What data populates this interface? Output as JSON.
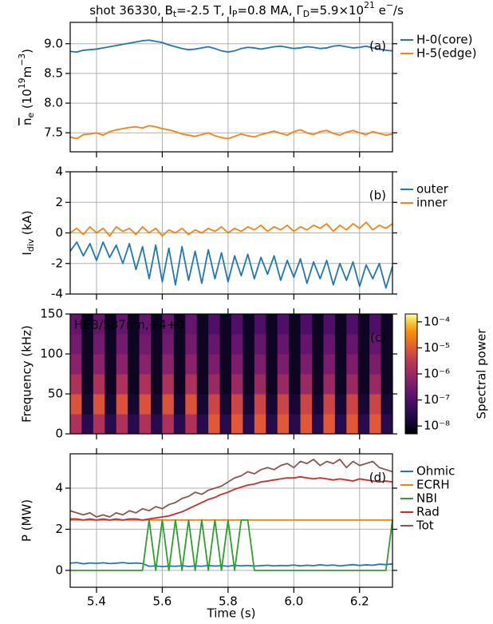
{
  "chart_data": [
    {
      "type": "line",
      "title": [
        {
          "text": "shot 36330, B"
        },
        {
          "text": "t",
          "shift": "sub"
        },
        {
          "text": "=-2.5 T, I"
        },
        {
          "text": "P",
          "shift": "sub"
        },
        {
          "text": "=0.8 MA, Γ"
        },
        {
          "text": "D",
          "shift": "sub"
        },
        {
          "text": "=5.9×10"
        },
        {
          "text": "21",
          "shift": "super"
        },
        {
          "text": " e"
        },
        {
          "text": "−",
          "shift": "super"
        },
        {
          "text": "/s"
        }
      ],
      "ylabel": [
        {
          "text": "n",
          "shift": "overline"
        },
        {
          "text": "e",
          "shift": "sub"
        },
        {
          "text": " (10"
        },
        {
          "text": "19",
          "shift": "super"
        },
        {
          "text": "m"
        },
        {
          "text": "−3",
          "shift": "super"
        },
        {
          "text": ")"
        }
      ],
      "panel_label": "(a)",
      "grid": true,
      "legend": "outside right",
      "xlim": [
        5.32,
        6.3
      ],
      "xticks": [
        5.4,
        5.6,
        5.8,
        {
          "value": 6,
          "label": "6.0"
        },
        6.2
      ],
      "ylim": [
        7.18,
        9.36
      ],
      "yticks": [
        7.5,
        {
          "value": 8,
          "label": "8.0"
        },
        8.5,
        {
          "value": 9,
          "label": "9.0"
        }
      ],
      "x": [
        5.32,
        5.34,
        5.36,
        5.38,
        5.4,
        5.42,
        5.44,
        5.46,
        5.48,
        5.5,
        5.52,
        5.54,
        5.56,
        5.58,
        5.6,
        5.62,
        5.64,
        5.66,
        5.68,
        5.7,
        5.72,
        5.74,
        5.76,
        5.78,
        5.8,
        5.82,
        5.84,
        5.86,
        5.88,
        5.9,
        5.92,
        5.94,
        5.96,
        5.98,
        6.0,
        6.02,
        6.04,
        6.06,
        6.08,
        6.1,
        6.12,
        6.14,
        6.16,
        6.18,
        6.2,
        6.22,
        6.24,
        6.26,
        6.28,
        6.3
      ],
      "series": [
        {
          "name": "H-0(core)",
          "color": "#1f77b4",
          "values": [
            8.87,
            8.86,
            8.89,
            8.9,
            8.91,
            8.93,
            8.95,
            8.97,
            8.99,
            9.01,
            9.03,
            9.05,
            9.06,
            9.04,
            9.02,
            8.98,
            8.95,
            8.92,
            8.9,
            8.91,
            8.93,
            8.95,
            8.92,
            8.88,
            8.86,
            8.88,
            8.92,
            8.94,
            8.93,
            8.91,
            8.93,
            8.95,
            8.96,
            8.94,
            8.92,
            8.93,
            8.95,
            8.94,
            8.92,
            8.93,
            8.96,
            8.97,
            8.95,
            8.93,
            8.94,
            8.96,
            8.93,
            8.91,
            8.89,
            8.88
          ]
        },
        {
          "name": "H-5(edge)",
          "color": "#ff7f0e",
          "values": [
            7.43,
            7.4,
            7.47,
            7.48,
            7.5,
            7.46,
            7.52,
            7.55,
            7.57,
            7.59,
            7.6,
            7.58,
            7.62,
            7.6,
            7.57,
            7.55,
            7.52,
            7.48,
            7.46,
            7.44,
            7.47,
            7.5,
            7.45,
            7.42,
            7.4,
            7.44,
            7.48,
            7.45,
            7.43,
            7.47,
            7.5,
            7.53,
            7.49,
            7.46,
            7.52,
            7.55,
            7.5,
            7.47,
            7.52,
            7.54,
            7.49,
            7.46,
            7.51,
            7.54,
            7.5,
            7.47,
            7.52,
            7.49,
            7.46,
            7.48
          ]
        }
      ]
    },
    {
      "type": "line",
      "ylabel": [
        {
          "text": "I"
        },
        {
          "text": "div",
          "shift": "sub"
        },
        {
          "text": " (kA)"
        }
      ],
      "panel_label": "(b)",
      "grid": true,
      "legend": "outside right",
      "xlim": [
        5.32,
        6.3
      ],
      "xticks": [
        5.4,
        5.6,
        5.8,
        {
          "value": 6,
          "label": "6.0"
        },
        6.2
      ],
      "ylim": [
        -4,
        4
      ],
      "yticks": [
        -4,
        -2,
        0,
        2,
        4
      ],
      "x": [
        5.32,
        5.34,
        5.36,
        5.38,
        5.4,
        5.42,
        5.44,
        5.46,
        5.48,
        5.5,
        5.52,
        5.54,
        5.56,
        5.58,
        5.6,
        5.62,
        5.64,
        5.66,
        5.68,
        5.7,
        5.72,
        5.74,
        5.76,
        5.78,
        5.8,
        5.82,
        5.84,
        5.86,
        5.88,
        5.9,
        5.92,
        5.94,
        5.96,
        5.98,
        6.0,
        6.02,
        6.04,
        6.06,
        6.08,
        6.1,
        6.12,
        6.14,
        6.16,
        6.18,
        6.2,
        6.22,
        6.24,
        6.26,
        6.28,
        6.3
      ],
      "series": [
        {
          "name": "outer",
          "color": "#1f77b4",
          "values": [
            -1.2,
            -0.6,
            -1.5,
            -0.7,
            -1.8,
            -0.6,
            -1.6,
            -0.8,
            -2.0,
            -0.7,
            -2.4,
            -0.9,
            -3.0,
            -0.8,
            -3.2,
            -1.0,
            -3.4,
            -0.9,
            -3.1,
            -1.2,
            -3.3,
            -1.1,
            -3.0,
            -1.3,
            -3.2,
            -1.5,
            -2.8,
            -1.4,
            -3.0,
            -1.6,
            -2.7,
            -1.5,
            -3.1,
            -1.8,
            -2.9,
            -1.7,
            -3.3,
            -1.9,
            -3.0,
            -1.8,
            -3.4,
            -2.0,
            -3.1,
            -1.9,
            -3.5,
            -2.1,
            -3.0,
            -2.0,
            -3.6,
            -2.2
          ]
        },
        {
          "name": "inner",
          "color": "#ff7f0e",
          "values": [
            0.0,
            0.3,
            -0.1,
            0.4,
            0.0,
            0.3,
            -0.2,
            0.4,
            0.1,
            0.3,
            -0.1,
            0.4,
            0.0,
            0.3,
            -0.2,
            0.2,
            0.0,
            0.3,
            -0.1,
            0.2,
            0.0,
            0.3,
            0.1,
            0.4,
            0.0,
            0.3,
            0.1,
            0.4,
            0.2,
            0.5,
            0.1,
            0.4,
            0.2,
            0.5,
            0.1,
            0.4,
            0.2,
            0.5,
            0.3,
            0.6,
            0.1,
            0.5,
            0.2,
            0.6,
            0.3,
            0.7,
            0.2,
            0.5,
            0.3,
            0.6
          ]
        }
      ]
    },
    {
      "type": "heatmap",
      "ylabel": "Frequency (kHz)",
      "panel_label": "(c)",
      "annotation": "HEB/587nm,+4+0",
      "colormap": "inferno",
      "zscale": "log",
      "zlabel": "Spectral power",
      "zlim": [
        5e-09,
        0.0002
      ],
      "zticks": [
        {
          "value": 1e-08,
          "label": "10⁻⁸"
        },
        {
          "value": 1e-07,
          "label": "10⁻⁷"
        },
        {
          "value": 1e-06,
          "label": "10⁻⁶"
        },
        {
          "value": 1e-05,
          "label": "10⁻⁵"
        },
        {
          "value": 0.0001,
          "label": "10⁻⁴"
        }
      ],
      "xlim": [
        5.32,
        6.3
      ],
      "xticks": [
        5.4,
        5.6,
        5.8,
        {
          "value": 6,
          "label": "6.0"
        },
        6.2
      ],
      "ylim": [
        0,
        150
      ],
      "yticks": [
        0,
        50,
        100,
        150
      ],
      "x_edges": [
        5.32,
        5.355,
        5.39,
        5.425,
        5.46,
        5.495,
        5.53,
        5.565,
        5.6,
        5.635,
        5.67,
        5.705,
        5.74,
        5.775,
        5.81,
        5.845,
        5.88,
        5.915,
        5.95,
        5.985,
        6.02,
        6.055,
        6.09,
        6.125,
        6.16,
        6.195,
        6.23,
        6.265,
        6.3
      ],
      "y_edges": [
        0,
        25,
        50,
        75,
        100,
        125,
        150
      ],
      "z": [
        [
          2e-06,
          3e-08,
          2e-06,
          3e-08,
          2e-06,
          3e-08,
          2e-06,
          3e-08,
          2e-06,
          3e-08,
          2e-06,
          3e-08,
          1e-05,
          3e-08,
          1e-05,
          3e-08,
          1e-05,
          3e-08,
          1e-05,
          3e-08,
          1e-05,
          3e-08,
          1e-05,
          3e-08,
          1e-05,
          3e-08,
          1e-05,
          3e-08
        ],
        [
          8e-06,
          1.5e-08,
          8e-06,
          1.5e-08,
          8e-06,
          1.5e-08,
          8e-06,
          1.5e-08,
          8e-06,
          1.5e-08,
          8e-06,
          1.5e-08,
          5e-06,
          1.5e-08,
          5e-06,
          1.5e-08,
          5e-06,
          1.5e-08,
          5e-06,
          1.5e-08,
          5e-06,
          1.5e-08,
          5e-06,
          1.5e-08,
          5e-06,
          1.5e-08,
          5e-06,
          1.5e-08
        ],
        [
          2e-06,
          1e-08,
          2e-06,
          1e-08,
          2e-06,
          1e-08,
          2e-06,
          1e-08,
          2e-06,
          1e-08,
          2e-06,
          1e-08,
          1e-06,
          1e-08,
          1e-06,
          1e-08,
          1e-06,
          1e-08,
          1e-06,
          1e-08,
          1e-06,
          1e-08,
          1e-06,
          1e-08,
          1e-06,
          1e-08,
          1e-06,
          1e-08
        ],
        [
          6e-07,
          1e-08,
          6e-07,
          1e-08,
          6e-07,
          1e-08,
          6e-07,
          1e-08,
          6e-07,
          1e-08,
          6e-07,
          1e-08,
          4e-07,
          1e-08,
          4e-07,
          1e-08,
          4e-07,
          1e-08,
          4e-07,
          1e-08,
          4e-07,
          1e-08,
          4e-07,
          1e-08,
          4e-07,
          1e-08,
          4e-07,
          1e-08
        ],
        [
          3e-07,
          1e-08,
          3e-07,
          1e-08,
          3e-07,
          1e-08,
          3e-07,
          1e-08,
          3e-07,
          1e-08,
          3e-07,
          1e-08,
          2e-07,
          1e-08,
          2e-07,
          1e-08,
          2e-07,
          1e-08,
          2e-07,
          1e-08,
          2e-07,
          1e-08,
          2e-07,
          1e-08,
          2e-07,
          1e-08,
          2e-07,
          1e-08
        ],
        [
          2e-07,
          1e-08,
          2e-07,
          1e-08,
          2e-07,
          1e-08,
          2e-07,
          1e-08,
          2e-07,
          1e-08,
          2e-07,
          1e-08,
          1e-07,
          1e-08,
          1e-07,
          1e-08,
          1e-07,
          1e-08,
          1e-07,
          1e-08,
          1e-07,
          1e-08,
          1e-07,
          1e-08,
          1e-07,
          1e-08,
          1e-07,
          1e-08
        ]
      ]
    },
    {
      "type": "line",
      "ylabel": "P (MW)",
      "xlabel": "Time (s)",
      "panel_label": "(d)",
      "grid": true,
      "legend": "outside right",
      "xlim": [
        5.32,
        6.3
      ],
      "xticks": [
        5.4,
        5.6,
        5.8,
        {
          "value": 6,
          "label": "6.0"
        },
        6.2
      ],
      "ylim": [
        -0.82,
        5.67
      ],
      "yticks": [
        0,
        2,
        4
      ],
      "x": [
        5.32,
        5.34,
        5.36,
        5.38,
        5.4,
        5.42,
        5.44,
        5.46,
        5.48,
        5.5,
        5.52,
        5.54,
        5.56,
        5.58,
        5.6,
        5.62,
        5.64,
        5.66,
        5.68,
        5.7,
        5.72,
        5.74,
        5.76,
        5.78,
        5.8,
        5.82,
        5.84,
        5.86,
        5.88,
        5.9,
        5.92,
        5.94,
        5.96,
        5.98,
        6.0,
        6.02,
        6.04,
        6.06,
        6.08,
        6.1,
        6.12,
        6.14,
        6.16,
        6.18,
        6.2,
        6.22,
        6.24,
        6.26,
        6.28,
        6.3
      ],
      "series": [
        {
          "name": "Ohmic",
          "color": "#1f77b4",
          "values": [
            0.35,
            0.38,
            0.32,
            0.36,
            0.34,
            0.37,
            0.33,
            0.35,
            0.38,
            0.34,
            0.36,
            0.33,
            0.2,
            0.22,
            0.18,
            0.21,
            0.2,
            0.23,
            0.19,
            0.22,
            0.2,
            0.24,
            0.21,
            0.23,
            0.2,
            0.25,
            0.22,
            0.24,
            0.21,
            0.23,
            0.25,
            0.22,
            0.24,
            0.23,
            0.26,
            0.22,
            0.25,
            0.23,
            0.27,
            0.24,
            0.26,
            0.22,
            0.25,
            0.28,
            0.24,
            0.27,
            0.25,
            0.3,
            0.28,
            0.32
          ]
        },
        {
          "name": "ECRH",
          "color": "#ff7f0e",
          "values": [
            2.45,
            2.45,
            2.45,
            2.45,
            2.45,
            2.45,
            2.45,
            2.45,
            2.45,
            2.45,
            2.45,
            2.45,
            2.45,
            2.45,
            2.45,
            2.45,
            2.45,
            2.45,
            2.45,
            2.45,
            2.45,
            2.45,
            2.45,
            2.45,
            2.45,
            2.45,
            2.45,
            2.45,
            2.45,
            2.45,
            2.45,
            2.45,
            2.45,
            2.45,
            2.45,
            2.45,
            2.45,
            2.45,
            2.45,
            2.45,
            2.45,
            2.45,
            2.45,
            2.45,
            2.45,
            2.45,
            2.45,
            2.45,
            2.45,
            2.45
          ]
        },
        {
          "name": "NBI",
          "color": "#2ca02c",
          "values": [
            0,
            0,
            0,
            0,
            0,
            0,
            0,
            0,
            0,
            0,
            0,
            0,
            2.45,
            0,
            2.45,
            0,
            2.45,
            0,
            2.45,
            0,
            2.45,
            0,
            2.45,
            0,
            2.45,
            0,
            2.45,
            2.45,
            0,
            0,
            0,
            0,
            0,
            0,
            0,
            0,
            0,
            0,
            0,
            0,
            0,
            0,
            0,
            0,
            0,
            0,
            0,
            0,
            0,
            2.45
          ]
        },
        {
          "name": "Rad",
          "color": "#d62728",
          "values": [
            2.5,
            2.5,
            2.45,
            2.5,
            2.45,
            2.5,
            2.45,
            2.5,
            2.45,
            2.5,
            2.5,
            2.45,
            2.5,
            2.55,
            2.6,
            2.65,
            2.75,
            2.85,
            3.0,
            3.15,
            3.3,
            3.45,
            3.55,
            3.7,
            3.8,
            3.95,
            4.05,
            4.15,
            4.2,
            4.3,
            4.35,
            4.4,
            4.45,
            4.5,
            4.5,
            4.55,
            4.5,
            4.45,
            4.5,
            4.45,
            4.4,
            4.45,
            4.4,
            4.35,
            4.45,
            4.4,
            4.35,
            4.3,
            4.35,
            4.3
          ]
        },
        {
          "name": "Tot",
          "color": "#8c564b",
          "values": [
            2.9,
            2.8,
            2.7,
            2.8,
            2.6,
            2.7,
            2.6,
            2.8,
            2.7,
            2.9,
            2.8,
            3.0,
            2.9,
            3.1,
            3.0,
            3.2,
            3.3,
            3.5,
            3.6,
            3.8,
            3.7,
            3.9,
            4.0,
            4.1,
            4.3,
            4.5,
            4.6,
            4.8,
            4.7,
            4.9,
            5.0,
            4.9,
            5.1,
            5.2,
            5.0,
            5.3,
            5.2,
            5.4,
            5.1,
            5.3,
            5.2,
            5.4,
            5.0,
            5.3,
            5.1,
            5.2,
            5.3,
            5.0,
            4.9,
            4.8
          ]
        }
      ]
    }
  ]
}
